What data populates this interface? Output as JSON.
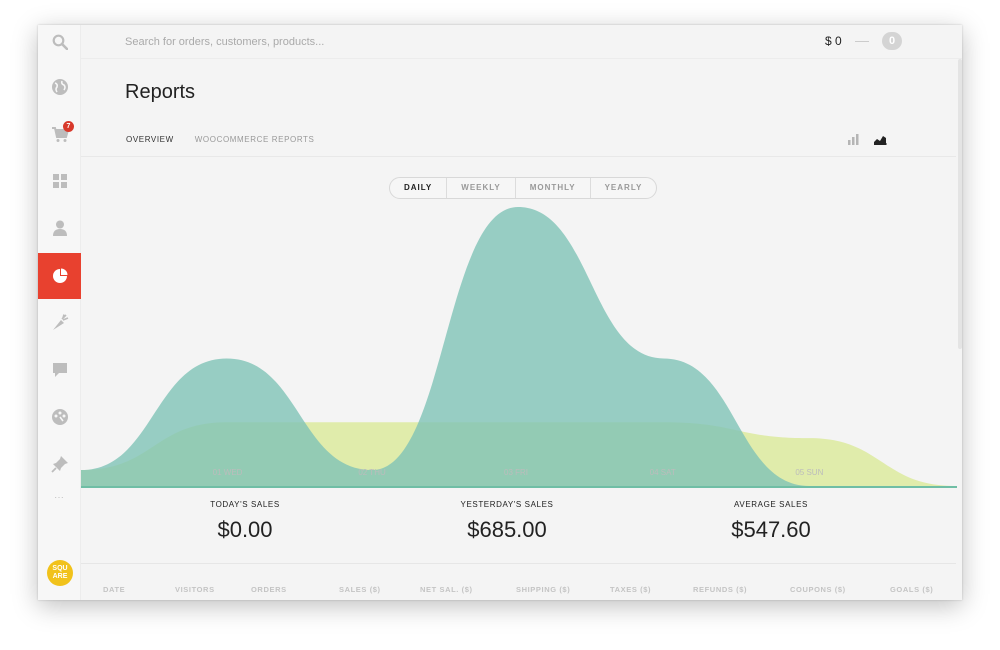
{
  "search": {
    "placeholder": "Search for orders, customers, products..."
  },
  "cart": {
    "total": "$ 0",
    "count": "0"
  },
  "sidebar": {
    "items": [
      {
        "name": "globe-icon"
      },
      {
        "name": "cart-icon",
        "badge": "7"
      },
      {
        "name": "dashboard-grid-icon"
      },
      {
        "name": "user-icon"
      },
      {
        "name": "reports-pie-icon",
        "active": true
      },
      {
        "name": "carrot-icon"
      },
      {
        "name": "comment-icon"
      },
      {
        "name": "palette-icon"
      },
      {
        "name": "pin-icon"
      }
    ],
    "more": "...",
    "logo_text_top": "SQU",
    "logo_text_bottom": "ARE"
  },
  "page": {
    "title": "Reports"
  },
  "tabs": [
    {
      "label": "OVERVIEW",
      "active": true
    },
    {
      "label": "WOOCOMMERCE REPORTS",
      "active": false
    }
  ],
  "view_toggles": [
    "bar-chart-icon",
    "area-chart-icon"
  ],
  "period": {
    "options": [
      "DAILY",
      "WEEKLY",
      "MONTHLY",
      "YEARLY"
    ],
    "selected": "DAILY"
  },
  "chart_data": {
    "type": "area",
    "x": [
      "",
      "01 WED",
      "02 THU",
      "03 FRI",
      "04 SAT",
      "05 SUN",
      ""
    ],
    "day_labels": [
      "01 WED",
      "02 THU",
      "03 FRI",
      "04 SAT",
      "05 SUN"
    ],
    "series": [
      {
        "color": "#7fc3b7",
        "values": [
          0.2,
          1.6,
          0.2,
          3.5,
          1.6,
          0.0,
          0.0
        ]
      },
      {
        "color": "#dcea9e",
        "values": [
          0.2,
          0.8,
          0.8,
          0.8,
          0.8,
          0.6,
          0.0
        ]
      }
    ],
    "ylim": [
      0,
      3.6
    ]
  },
  "stats": [
    {
      "label": "TODAY'S SALES",
      "value": "$0.00"
    },
    {
      "label": "YESTERDAY'S SALES",
      "value": "$685.00"
    },
    {
      "label": "AVERAGE SALES",
      "value": "$547.60"
    }
  ],
  "table": {
    "columns": [
      "DATE",
      "VISITORS",
      "ORDERS",
      "SALES ($)",
      "NET SAL. ($)",
      "SHIPPING ($)",
      "TAXES ($)",
      "REFUNDS ($)",
      "COUPONS ($)",
      "GOALS  ($)"
    ]
  },
  "colors": {
    "accent": "#e8412f",
    "teal": "#7fc3b7",
    "lime": "#dcea9e",
    "logo": "#f1c21b"
  }
}
